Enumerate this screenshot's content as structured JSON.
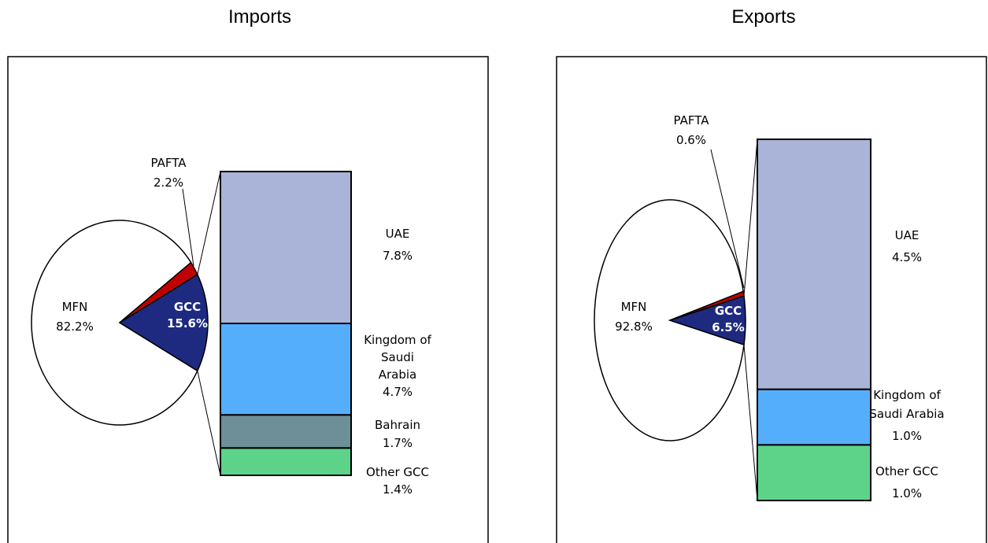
{
  "chart_data": [
    {
      "type": "pie-of-bar",
      "title": "Imports",
      "pie": [
        {
          "label": "MFN",
          "value": 82.2,
          "value_text": "82.2%",
          "color": "#ffffff"
        },
        {
          "label": "GCC",
          "value": 15.6,
          "value_text": "15.6%",
          "color": "#1e2a80"
        },
        {
          "label": "PAFTA",
          "value": 2.2,
          "value_text": "2.2%",
          "color": "#c00000"
        }
      ],
      "bar": [
        {
          "label": "UAE",
          "value": 7.8,
          "value_text": "7.8%",
          "color": "#aab4d8"
        },
        {
          "label": "Kingdom of Saudi Arabia",
          "lines": [
            "Kingdom of",
            "Saudi",
            "Arabia"
          ],
          "value": 4.7,
          "value_text": "4.7%",
          "color": "#55aefc"
        },
        {
          "label": "Bahrain",
          "value": 1.7,
          "value_text": "1.7%",
          "color": "#6d8f98"
        },
        {
          "label": "Other GCC",
          "value": 1.4,
          "value_text": "1.4%",
          "color": "#5dd38a"
        }
      ]
    },
    {
      "type": "pie-of-bar",
      "title": "Exports",
      "pie": [
        {
          "label": "MFN",
          "value": 92.8,
          "value_text": "92.8%",
          "color": "#ffffff"
        },
        {
          "label": "GCC",
          "value": 6.5,
          "value_text": "6.5%",
          "color": "#1e2a80"
        },
        {
          "label": "PAFTA",
          "value": 0.6,
          "value_text": "0.6%",
          "color": "#c00000"
        }
      ],
      "bar": [
        {
          "label": "UAE",
          "value": 4.5,
          "value_text": "4.5%",
          "color": "#aab4d8"
        },
        {
          "label": "Kingdom of Saudi Arabia",
          "lines": [
            "Kingdom of",
            "Saudi Arabia"
          ],
          "value": 1.0,
          "value_text": "1.0%",
          "color": "#55aefc"
        },
        {
          "label": "Other GCC",
          "value": 1.0,
          "value_text": "1.0%",
          "color": "#5dd38a"
        }
      ]
    }
  ]
}
